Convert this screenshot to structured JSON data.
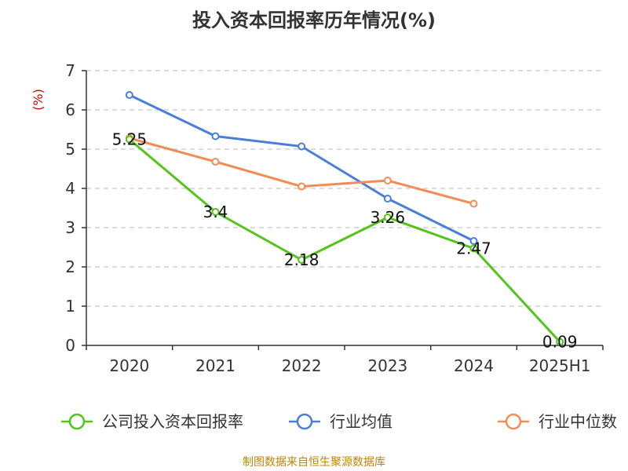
{
  "chart_data": {
    "type": "line",
    "title": "投入资本回报率历年情况(%)",
    "ylabel": "(%)",
    "categories": [
      "2020",
      "2021",
      "2022",
      "2023",
      "2024",
      "2025H1"
    ],
    "ylim": [
      0,
      7
    ],
    "yticks": [
      0,
      1,
      2,
      3,
      4,
      5,
      6,
      7
    ],
    "grid": true,
    "legend_position": "bottom",
    "series": [
      {
        "name": "公司投入资本回报率",
        "color": "#52c41a",
        "values": [
          5.25,
          3.4,
          2.18,
          3.26,
          2.47,
          0.09
        ],
        "labels": [
          "5.25",
          "3.4",
          "2.18",
          "3.26",
          "2.47",
          "0.09"
        ]
      },
      {
        "name": "行业均值",
        "color": "#4a7fd8",
        "values": [
          6.38,
          5.33,
          5.07,
          3.74,
          2.66,
          null
        ]
      },
      {
        "name": "行业中位数",
        "color": "#f28c55",
        "values": [
          5.28,
          4.68,
          4.05,
          4.2,
          3.61,
          null
        ]
      }
    ]
  },
  "source": "制图数据来自恒生聚源数据库"
}
